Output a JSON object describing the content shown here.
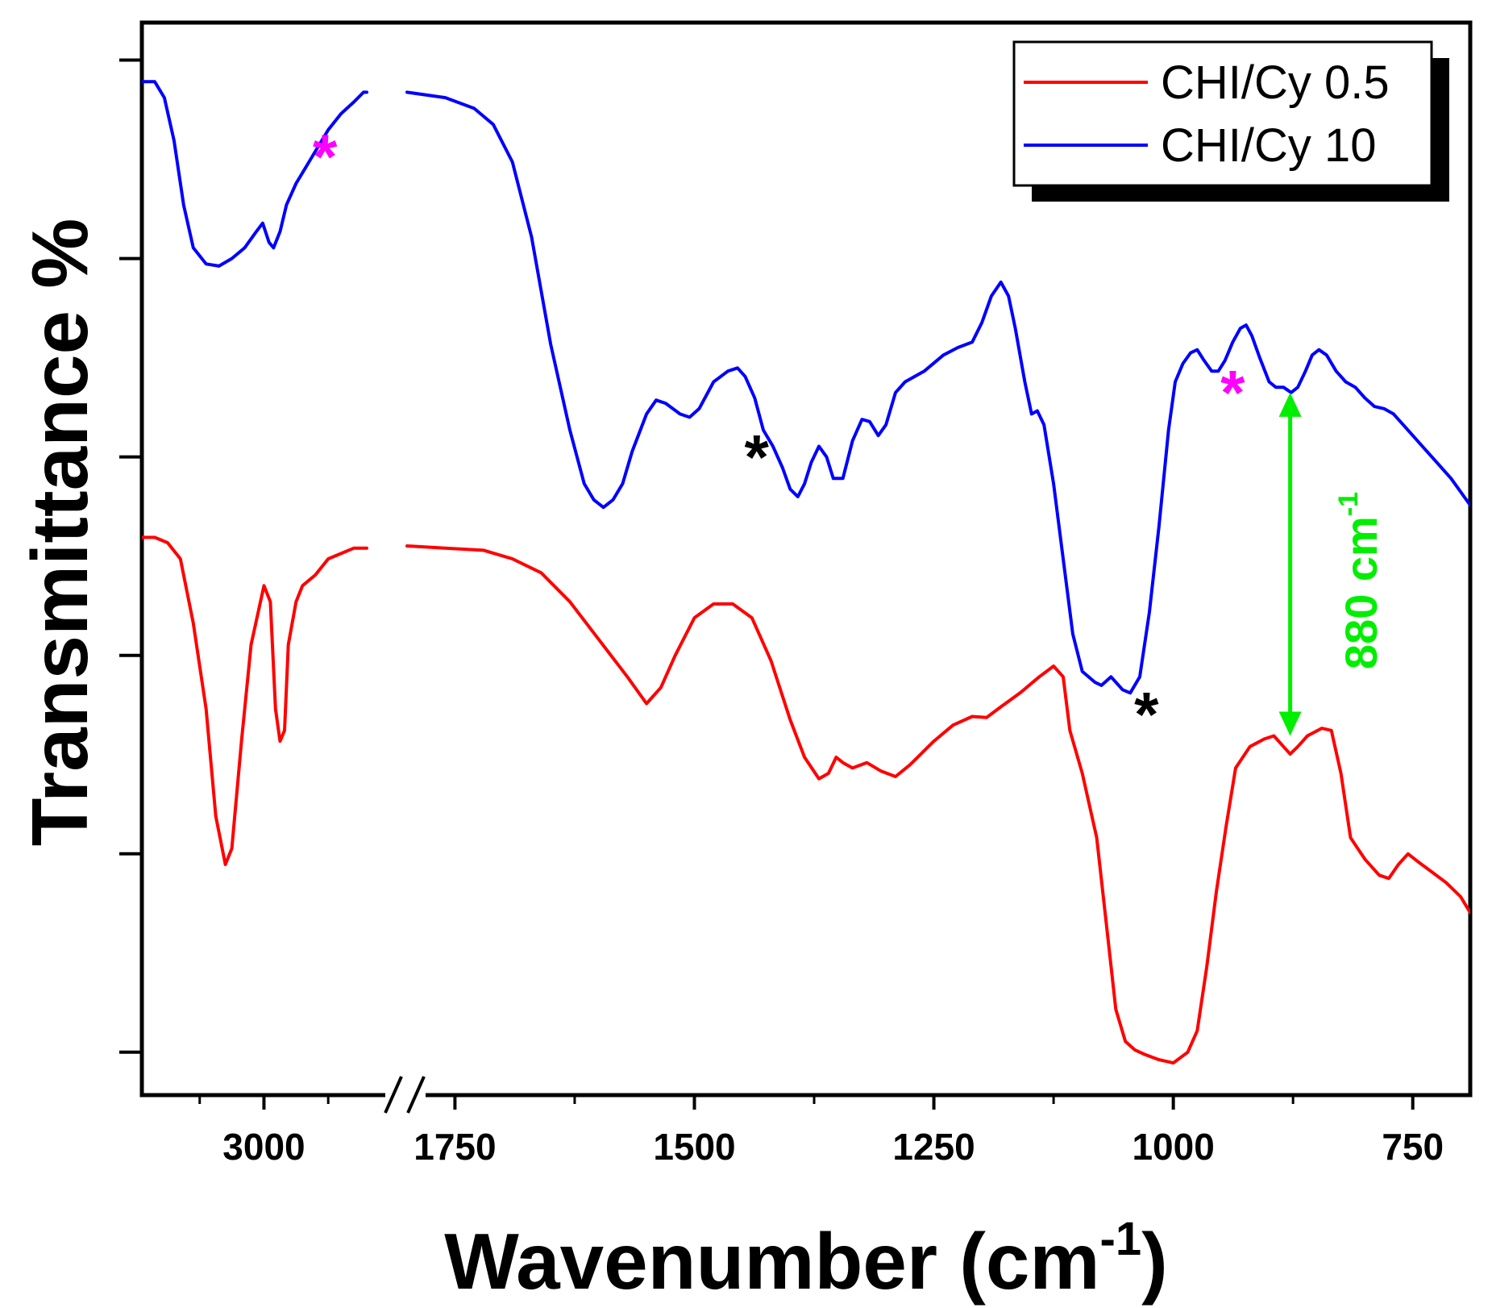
{
  "chart_data": {
    "type": "line",
    "title": "",
    "xlabel": "Wavenumber (cm",
    "xlabel_sup": "-1",
    "xlabel_close": ")",
    "ylabel": "Transmittance %",
    "x_axis": {
      "segments": [
        {
          "xlim": [
            3190,
            2840
          ],
          "ticks": [
            3000
          ]
        },
        {
          "xlim": [
            1800,
            690
          ],
          "ticks": [
            1750,
            1500,
            1250,
            1000,
            750
          ]
        }
      ],
      "tick_labels": [
        "3000",
        "1750",
        "1500",
        "1250",
        "1000",
        "750"
      ],
      "break": true
    },
    "ylim": [
      0,
      100
    ],
    "y_ticks": [
      4,
      22.5,
      41,
      59.5,
      78,
      96.5
    ],
    "grid": false,
    "legend": {
      "position": "top-right",
      "shadow": true
    },
    "series": [
      {
        "name": "CHI/Cy 0.5",
        "color": "#ff0000",
        "points": [
          [
            3190,
            52
          ],
          [
            3170,
            52
          ],
          [
            3150,
            51.5
          ],
          [
            3130,
            50
          ],
          [
            3110,
            44
          ],
          [
            3090,
            36
          ],
          [
            3075,
            26
          ],
          [
            3060,
            21.5
          ],
          [
            3050,
            23
          ],
          [
            3035,
            33
          ],
          [
            3020,
            42
          ],
          [
            3000,
            47.5
          ],
          [
            2990,
            46
          ],
          [
            2982,
            36
          ],
          [
            2975,
            33
          ],
          [
            2968,
            34
          ],
          [
            2962,
            42
          ],
          [
            2950,
            46
          ],
          [
            2940,
            47.5
          ],
          [
            2920,
            48.5
          ],
          [
            2900,
            50
          ],
          [
            2880,
            50.5
          ],
          [
            2860,
            51
          ],
          [
            2840,
            51
          ],
          [
            1800,
            51.2
          ],
          [
            1760,
            51
          ],
          [
            1720,
            50.8
          ],
          [
            1690,
            50
          ],
          [
            1660,
            48.7
          ],
          [
            1630,
            46
          ],
          [
            1600,
            42.5
          ],
          [
            1570,
            39
          ],
          [
            1550,
            36.5
          ],
          [
            1535,
            38
          ],
          [
            1520,
            41
          ],
          [
            1500,
            44.5
          ],
          [
            1480,
            45.8
          ],
          [
            1460,
            45.8
          ],
          [
            1440,
            44.5
          ],
          [
            1420,
            40.5
          ],
          [
            1400,
            35
          ],
          [
            1385,
            31.5
          ],
          [
            1370,
            29.5
          ],
          [
            1360,
            30
          ],
          [
            1352,
            31.5
          ],
          [
            1345,
            31
          ],
          [
            1335,
            30.5
          ],
          [
            1320,
            31
          ],
          [
            1305,
            30.2
          ],
          [
            1290,
            29.7
          ],
          [
            1275,
            30.8
          ],
          [
            1250,
            33
          ],
          [
            1230,
            34.5
          ],
          [
            1210,
            35.3
          ],
          [
            1195,
            35.2
          ],
          [
            1180,
            36.2
          ],
          [
            1160,
            37.5
          ],
          [
            1140,
            39
          ],
          [
            1125,
            40
          ],
          [
            1115,
            39
          ],
          [
            1108,
            34
          ],
          [
            1095,
            30
          ],
          [
            1080,
            24
          ],
          [
            1070,
            16
          ],
          [
            1060,
            8
          ],
          [
            1050,
            5
          ],
          [
            1040,
            4.2
          ],
          [
            1030,
            3.8
          ],
          [
            1015,
            3.3
          ],
          [
            1000,
            3
          ],
          [
            985,
            4
          ],
          [
            975,
            6
          ],
          [
            965,
            12
          ],
          [
            955,
            19
          ],
          [
            945,
            25
          ],
          [
            935,
            30.5
          ],
          [
            920,
            32.5
          ],
          [
            905,
            33.2
          ],
          [
            895,
            33.5
          ],
          [
            885,
            32.5
          ],
          [
            878,
            31.8
          ],
          [
            870,
            32.5
          ],
          [
            860,
            33.5
          ],
          [
            845,
            34.2
          ],
          [
            835,
            34
          ],
          [
            825,
            30
          ],
          [
            815,
            24
          ],
          [
            800,
            22
          ],
          [
            785,
            20.5
          ],
          [
            775,
            20.2
          ],
          [
            765,
            21.5
          ],
          [
            755,
            22.5
          ],
          [
            745,
            21.8
          ],
          [
            730,
            20.8
          ],
          [
            715,
            19.8
          ],
          [
            700,
            18.5
          ],
          [
            690,
            17
          ]
        ]
      },
      {
        "name": "CHI/Cy 10",
        "color": "#0000ff",
        "points": [
          [
            3190,
            94.5
          ],
          [
            3170,
            94.5
          ],
          [
            3155,
            93
          ],
          [
            3140,
            89
          ],
          [
            3125,
            83
          ],
          [
            3110,
            79
          ],
          [
            3090,
            77.5
          ],
          [
            3070,
            77.3
          ],
          [
            3050,
            78
          ],
          [
            3030,
            79
          ],
          [
            3012,
            80.5
          ],
          [
            3002,
            81.3
          ],
          [
            2992,
            79.5
          ],
          [
            2985,
            79
          ],
          [
            2975,
            80.5
          ],
          [
            2965,
            83
          ],
          [
            2950,
            85
          ],
          [
            2930,
            87
          ],
          [
            2915,
            88.5
          ],
          [
            2900,
            90
          ],
          [
            2880,
            91.5
          ],
          [
            2860,
            92.6
          ],
          [
            2845,
            93.5
          ],
          [
            2840,
            93.5
          ],
          [
            1800,
            93.5
          ],
          [
            1760,
            93
          ],
          [
            1730,
            92
          ],
          [
            1710,
            90.5
          ],
          [
            1690,
            87
          ],
          [
            1670,
            80
          ],
          [
            1650,
            70
          ],
          [
            1630,
            62
          ],
          [
            1615,
            57
          ],
          [
            1605,
            55.5
          ],
          [
            1595,
            54.8
          ],
          [
            1585,
            55.5
          ],
          [
            1575,
            57
          ],
          [
            1565,
            60
          ],
          [
            1550,
            63.5
          ],
          [
            1540,
            64.8
          ],
          [
            1530,
            64.5
          ],
          [
            1515,
            63.5
          ],
          [
            1505,
            63.2
          ],
          [
            1495,
            64
          ],
          [
            1480,
            66.5
          ],
          [
            1465,
            67.5
          ],
          [
            1455,
            67.8
          ],
          [
            1447,
            67
          ],
          [
            1437,
            65
          ],
          [
            1428,
            62
          ],
          [
            1418,
            60.5
          ],
          [
            1408,
            58.5
          ],
          [
            1400,
            56.5
          ],
          [
            1392,
            55.8
          ],
          [
            1385,
            57
          ],
          [
            1378,
            59
          ],
          [
            1370,
            60.5
          ],
          [
            1362,
            59.5
          ],
          [
            1355,
            57.5
          ],
          [
            1345,
            57.5
          ],
          [
            1335,
            61
          ],
          [
            1325,
            63
          ],
          [
            1317,
            62.8
          ],
          [
            1308,
            61.5
          ],
          [
            1300,
            62.5
          ],
          [
            1290,
            65.5
          ],
          [
            1280,
            66.5
          ],
          [
            1260,
            67.5
          ],
          [
            1240,
            69
          ],
          [
            1225,
            69.7
          ],
          [
            1210,
            70.2
          ],
          [
            1200,
            72
          ],
          [
            1190,
            74.5
          ],
          [
            1180,
            75.8
          ],
          [
            1172,
            74.5
          ],
          [
            1165,
            71.5
          ],
          [
            1155,
            66.5
          ],
          [
            1148,
            63.5
          ],
          [
            1142,
            63.8
          ],
          [
            1135,
            62.5
          ],
          [
            1125,
            57
          ],
          [
            1115,
            50
          ],
          [
            1105,
            43
          ],
          [
            1095,
            39.5
          ],
          [
            1082,
            38.5
          ],
          [
            1075,
            38.2
          ],
          [
            1065,
            39
          ],
          [
            1060,
            38.5
          ],
          [
            1053,
            37.8
          ],
          [
            1045,
            37.5
          ],
          [
            1035,
            39
          ],
          [
            1025,
            45
          ],
          [
            1015,
            53
          ],
          [
            1005,
            62
          ],
          [
            998,
            66.5
          ],
          [
            990,
            68.2
          ],
          [
            982,
            69.2
          ],
          [
            975,
            69.5
          ],
          [
            968,
            68.5
          ],
          [
            960,
            67.5
          ],
          [
            953,
            67.5
          ],
          [
            946,
            68.5
          ],
          [
            938,
            70.2
          ],
          [
            930,
            71.5
          ],
          [
            924,
            71.8
          ],
          [
            918,
            70.8
          ],
          [
            910,
            68.8
          ],
          [
            900,
            66.5
          ],
          [
            893,
            66
          ],
          [
            885,
            66
          ],
          [
            877,
            65.5
          ],
          [
            870,
            66
          ],
          [
            862,
            67.5
          ],
          [
            855,
            69
          ],
          [
            848,
            69.5
          ],
          [
            840,
            69
          ],
          [
            830,
            67.5
          ],
          [
            820,
            66.5
          ],
          [
            810,
            66
          ],
          [
            800,
            65
          ],
          [
            790,
            64.2
          ],
          [
            780,
            64
          ],
          [
            770,
            63.5
          ],
          [
            755,
            62
          ],
          [
            740,
            60.5
          ],
          [
            725,
            59
          ],
          [
            710,
            57.5
          ],
          [
            690,
            55
          ]
        ]
      }
    ],
    "annotations": {
      "asterisk": "*",
      "marks": [
        {
          "label": "*",
          "color": "#ff00ff",
          "x": 2905,
          "y": 85.5
        },
        {
          "label": "*",
          "color": "#000000",
          "x": 1435,
          "y": 57.5
        },
        {
          "label": "*",
          "color": "#000000",
          "x": 1028,
          "y": 33.5
        },
        {
          "label": "*",
          "color": "#ff00ff",
          "x": 938,
          "y": 63.5
        }
      ],
      "arrow": {
        "x": 878,
        "y_from": 65.5,
        "y_to": 33.5,
        "color": "#00ee00"
      },
      "arrow_label": "880 cm",
      "arrow_label_sup": "-1"
    }
  }
}
